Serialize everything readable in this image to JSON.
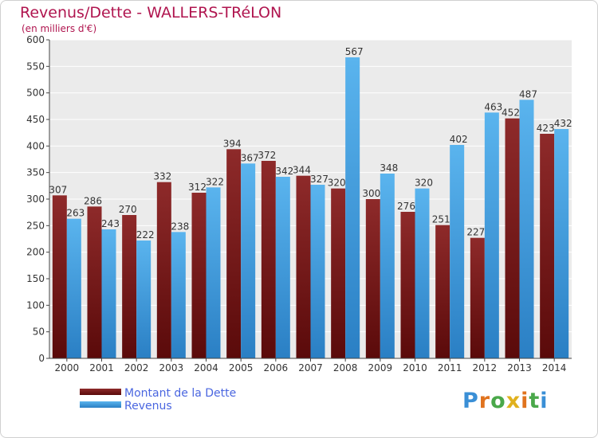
{
  "title": "Revenus/Dette - WALLERS-TRéLON",
  "subtitle": "(en milliers d'€)",
  "logo_text": "Proxiti",
  "colors": {
    "dette": "#7b1a1a",
    "revenus": "#3d9ee0",
    "title": "#b0154f",
    "legend_text": "#4a66e0"
  },
  "chart_data": {
    "type": "bar",
    "categories": [
      "2000",
      "2001",
      "2002",
      "2003",
      "2004",
      "2005",
      "2006",
      "2007",
      "2008",
      "2009",
      "2010",
      "2011",
      "2012",
      "2013",
      "2014"
    ],
    "series": [
      {
        "name": "Montant de la Dette",
        "values": [
          307,
          286,
          270,
          332,
          312,
          394,
          372,
          344,
          320,
          300,
          276,
          251,
          227,
          452,
          423
        ]
      },
      {
        "name": "Revenus",
        "values": [
          263,
          243,
          222,
          238,
          322,
          367,
          342,
          327,
          567,
          348,
          320,
          402,
          463,
          487,
          432
        ]
      }
    ],
    "ylim": [
      0,
      600
    ],
    "yticks": [
      0,
      50,
      100,
      150,
      200,
      250,
      300,
      350,
      400,
      450,
      500,
      550,
      600
    ],
    "grid": true,
    "legend": "bottom-left"
  }
}
